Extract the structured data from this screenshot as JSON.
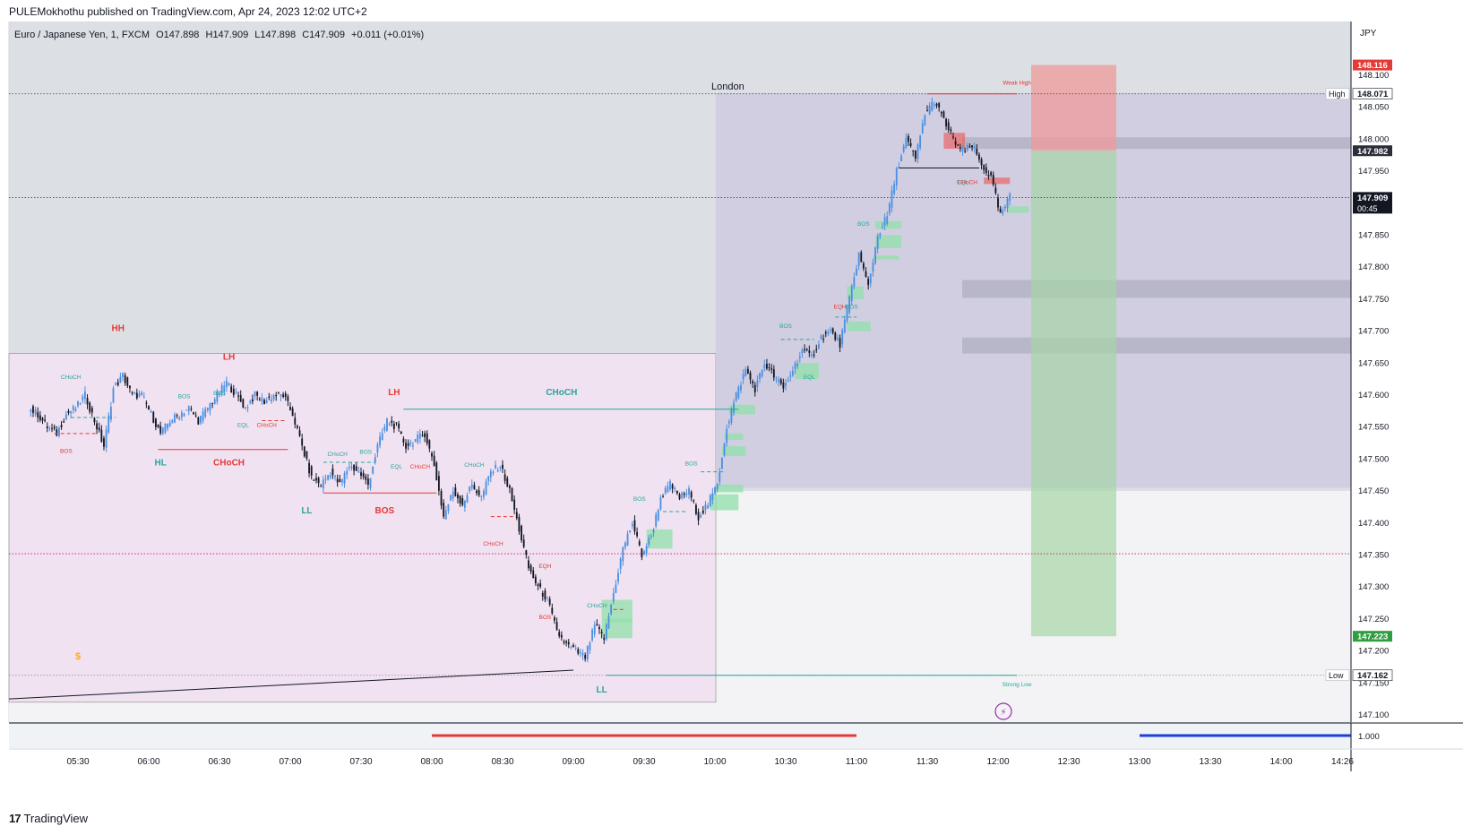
{
  "publisher_line": "PULEMokhothu published on TradingView.com, Apr 24, 2023 12:02 UTC+2",
  "legend": {
    "symbol": "Euro / Japanese Yen, 1, FXCM",
    "open": "O147.898",
    "high": "H147.909",
    "low": "L147.898",
    "close": "C147.909",
    "change": "+0.011 (+0.01%)"
  },
  "currency": "JPY",
  "footer_brand": "TradingView",
  "session_label": "London",
  "pane_value": "1.000",
  "colors": {
    "bull": "#4a90e2",
    "bear": "#131722",
    "bos_green": "#26a69a",
    "choch_red": "#ef5350",
    "target_green": "#66bb6a",
    "stop_red": "#ef5350"
  },
  "chart_data": {
    "type": "candlestick",
    "timeframe": "1",
    "ylim": [
      147.11,
      148.16
    ],
    "x_ticks": [
      "05:30",
      "06:00",
      "06:30",
      "07:00",
      "07:30",
      "08:00",
      "08:30",
      "09:00",
      "09:30",
      "10:00",
      "10:30",
      "11:00",
      "11:30",
      "12:00",
      "12:30",
      "13:00",
      "13:30",
      "14:00",
      "14:26"
    ],
    "y_ticks": [
      "148.100",
      "148.050",
      "148.000",
      "147.950",
      "147.900",
      "147.850",
      "147.800",
      "147.750",
      "147.700",
      "147.650",
      "147.600",
      "147.550",
      "147.500",
      "147.450",
      "147.400",
      "147.350",
      "147.300",
      "147.250",
      "147.200",
      "147.150",
      "147.100"
    ],
    "price_badges": [
      {
        "price": 148.116,
        "label": "148.116",
        "color": "#e53935"
      },
      {
        "price": 148.071,
        "label": "148.071",
        "color": "#ffffff",
        "tag": "High"
      },
      {
        "price": 147.982,
        "label": "147.982",
        "color": "#2a2e39"
      },
      {
        "price": 147.909,
        "label": "147.909",
        "sub": "00:45",
        "color": "#131722"
      },
      {
        "price": 147.223,
        "label": "147.223",
        "color": "#2e9e3e"
      },
      {
        "price": 147.162,
        "label": "147.162",
        "color": "#ffffff",
        "tag": "Low"
      }
    ],
    "structure_labels": [
      {
        "text": "HH",
        "color": "red",
        "time": "05:47",
        "price": 147.7
      },
      {
        "text": "LH",
        "color": "red",
        "time": "06:34",
        "price": 147.655
      },
      {
        "text": "LH",
        "color": "red",
        "time": "07:44",
        "price": 147.6
      },
      {
        "text": "HL",
        "color": "green",
        "time": "06:05",
        "price": 147.49
      },
      {
        "text": "LL",
        "color": "green",
        "time": "07:07",
        "price": 147.415
      },
      {
        "text": "LL",
        "color": "green",
        "time": "09:12",
        "price": 147.135
      },
      {
        "text": "CHoCH",
        "color": "red",
        "time": "06:34",
        "price": 147.49
      },
      {
        "text": "BOS",
        "color": "red",
        "time": "07:40",
        "price": 147.415
      },
      {
        "text": "CHoCH",
        "color": "green",
        "time": "08:55",
        "price": 147.6
      },
      {
        "text": "CHoCH",
        "color": "green",
        "time": "05:27",
        "price": 147.625
      },
      {
        "text": "BOS",
        "color": "green",
        "time": "06:15",
        "price": 147.595
      },
      {
        "text": "BOS",
        "color": "green",
        "time": "06:30",
        "price": 147.6
      },
      {
        "text": "EQL",
        "color": "green",
        "time": "06:40",
        "price": 147.55
      },
      {
        "text": "CHoCH",
        "color": "red",
        "time": "06:50",
        "price": 147.55
      },
      {
        "text": "BOS",
        "color": "red",
        "time": "05:25",
        "price": 147.51
      },
      {
        "text": "CHoCH",
        "color": "green",
        "time": "07:20",
        "price": 147.505
      },
      {
        "text": "BOS",
        "color": "green",
        "time": "07:32",
        "price": 147.508
      },
      {
        "text": "EQL",
        "color": "green",
        "time": "07:45",
        "price": 147.485
      },
      {
        "text": "CHoCH",
        "color": "red",
        "time": "07:55",
        "price": 147.485
      },
      {
        "text": "CHoCH",
        "color": "green",
        "time": "08:18",
        "price": 147.488
      },
      {
        "text": "CHoCH",
        "color": "red",
        "time": "08:26",
        "price": 147.365
      },
      {
        "text": "EQH",
        "color": "red",
        "time": "08:48",
        "price": 147.33
      },
      {
        "text": "BOS",
        "color": "red",
        "time": "08:48",
        "price": 147.25
      },
      {
        "text": "CHoCH",
        "color": "green",
        "time": "09:10",
        "price": 147.268
      },
      {
        "text": "BOS",
        "color": "green",
        "time": "09:28",
        "price": 147.435
      },
      {
        "text": "BOS",
        "color": "green",
        "time": "09:50",
        "price": 147.49
      },
      {
        "text": "BOS",
        "color": "green",
        "time": "10:30",
        "price": 147.705
      },
      {
        "text": "EQL",
        "color": "green",
        "time": "10:40",
        "price": 147.625
      },
      {
        "text": "EQH",
        "color": "red",
        "time": "10:53",
        "price": 147.735
      },
      {
        "text": "BOS",
        "color": "green",
        "time": "10:58",
        "price": 147.735
      },
      {
        "text": "BOS",
        "color": "green",
        "time": "11:03",
        "price": 147.865
      },
      {
        "text": "EQL",
        "color": "green",
        "time": "11:45",
        "price": 147.93
      },
      {
        "text": "CHoCH",
        "color": "red",
        "time": "11:47",
        "price": 147.93
      },
      {
        "text": "Weak High",
        "color": "red",
        "time": "12:08",
        "price": 148.085
      },
      {
        "text": "Strong Low",
        "color": "green",
        "time": "12:08",
        "price": 147.145
      }
    ],
    "position": {
      "entry": 147.982,
      "stop": 148.116,
      "target": 147.223,
      "from": "12:13",
      "to": "12:49"
    },
    "series": [
      {
        "name": "EUR/JPY 1m",
        "ohlc": [
          [
            "05:10",
            147.58,
            147.62,
            147.55,
            147.57
          ],
          [
            "05:14",
            147.57,
            147.58,
            147.53,
            147.55
          ],
          [
            "05:18",
            147.55,
            147.56,
            147.52,
            147.54
          ],
          [
            "05:22",
            147.54,
            147.58,
            147.53,
            147.57
          ],
          [
            "05:26",
            147.57,
            147.6,
            147.55,
            147.58
          ],
          [
            "05:30",
            147.58,
            147.62,
            147.56,
            147.6
          ],
          [
            "05:34",
            147.6,
            147.61,
            147.55,
            147.56
          ],
          [
            "05:38",
            147.56,
            147.57,
            147.51,
            147.52
          ],
          [
            "05:42",
            147.52,
            147.62,
            147.51,
            147.61
          ],
          [
            "05:46",
            147.61,
            147.67,
            147.6,
            147.63
          ],
          [
            "05:50",
            147.63,
            147.64,
            147.59,
            147.6
          ],
          [
            "05:54",
            147.6,
            147.62,
            147.58,
            147.6
          ],
          [
            "05:58",
            147.6,
            147.61,
            147.56,
            147.57
          ],
          [
            "06:02",
            147.57,
            147.58,
            147.53,
            147.54
          ],
          [
            "06:06",
            147.54,
            147.57,
            147.52,
            147.56
          ],
          [
            "06:10",
            147.56,
            147.59,
            147.54,
            147.57
          ],
          [
            "06:14",
            147.57,
            147.6,
            147.55,
            147.58
          ],
          [
            "06:18",
            147.58,
            147.59,
            147.55,
            147.56
          ],
          [
            "06:22",
            147.56,
            147.59,
            147.55,
            147.58
          ],
          [
            "06:26",
            147.58,
            147.61,
            147.56,
            147.6
          ],
          [
            "06:30",
            147.6,
            147.64,
            147.59,
            147.62
          ],
          [
            "06:34",
            147.62,
            147.63,
            147.59,
            147.6
          ],
          [
            "06:38",
            147.6,
            147.61,
            147.57,
            147.58
          ],
          [
            "06:42",
            147.58,
            147.61,
            147.56,
            147.6
          ],
          [
            "06:46",
            147.6,
            147.61,
            147.57,
            147.59
          ],
          [
            "06:50",
            147.59,
            147.61,
            147.57,
            147.6
          ],
          [
            "06:54",
            147.6,
            147.62,
            147.58,
            147.6
          ],
          [
            "06:58",
            147.6,
            147.61,
            147.56,
            147.57
          ],
          [
            "07:02",
            147.57,
            147.58,
            147.51,
            147.52
          ],
          [
            "07:06",
            147.52,
            147.53,
            147.46,
            147.47
          ],
          [
            "07:10",
            147.47,
            147.48,
            147.44,
            147.46
          ],
          [
            "07:14",
            147.46,
            147.5,
            147.45,
            147.48
          ],
          [
            "07:18",
            147.48,
            147.49,
            147.45,
            147.46
          ],
          [
            "07:22",
            147.46,
            147.5,
            147.45,
            147.49
          ],
          [
            "07:26",
            147.49,
            147.51,
            147.47,
            147.48
          ],
          [
            "07:30",
            147.48,
            147.5,
            147.44,
            147.46
          ],
          [
            "07:34",
            147.46,
            147.53,
            147.45,
            147.52
          ],
          [
            "07:38",
            147.52,
            147.57,
            147.51,
            147.56
          ],
          [
            "07:42",
            147.56,
            147.58,
            147.53,
            147.55
          ],
          [
            "07:46",
            147.55,
            147.56,
            147.51,
            147.52
          ],
          [
            "07:50",
            147.52,
            147.55,
            147.5,
            147.53
          ],
          [
            "07:54",
            147.53,
            147.56,
            147.51,
            147.54
          ],
          [
            "07:58",
            147.54,
            147.55,
            147.48,
            147.49
          ],
          [
            "08:02",
            147.49,
            147.5,
            147.39,
            147.41
          ],
          [
            "08:06",
            147.41,
            147.46,
            147.4,
            147.45
          ],
          [
            "08:10",
            147.45,
            147.46,
            147.41,
            147.43
          ],
          [
            "08:14",
            147.43,
            147.47,
            147.42,
            147.46
          ],
          [
            "08:18",
            147.46,
            147.47,
            147.42,
            147.44
          ],
          [
            "08:22",
            147.44,
            147.49,
            147.43,
            147.48
          ],
          [
            "08:26",
            147.48,
            147.5,
            147.46,
            147.49
          ],
          [
            "08:30",
            147.49,
            147.5,
            147.44,
            147.45
          ],
          [
            "08:34",
            147.45,
            147.46,
            147.38,
            147.39
          ],
          [
            "08:38",
            147.39,
            147.4,
            147.32,
            147.33
          ],
          [
            "08:42",
            147.33,
            147.34,
            147.28,
            147.3
          ],
          [
            "08:46",
            147.3,
            147.31,
            147.27,
            147.28
          ],
          [
            "08:50",
            147.28,
            147.29,
            147.22,
            147.23
          ],
          [
            "08:54",
            147.23,
            147.25,
            147.19,
            147.21
          ],
          [
            "08:58",
            147.21,
            147.23,
            147.18,
            147.2
          ],
          [
            "09:02",
            147.2,
            147.22,
            147.17,
            147.19
          ],
          [
            "09:06",
            147.19,
            147.25,
            147.18,
            147.24
          ],
          [
            "09:10",
            147.24,
            147.27,
            147.21,
            147.22
          ],
          [
            "09:14",
            147.22,
            147.3,
            147.21,
            147.29
          ],
          [
            "09:18",
            147.29,
            147.38,
            147.28,
            147.36
          ],
          [
            "09:22",
            147.36,
            147.42,
            147.34,
            147.4
          ],
          [
            "09:26",
            147.4,
            147.41,
            147.33,
            147.35
          ],
          [
            "09:30",
            147.35,
            147.4,
            147.3,
            147.38
          ],
          [
            "09:34",
            147.38,
            147.45,
            147.37,
            147.44
          ],
          [
            "09:38",
            147.44,
            147.48,
            147.42,
            147.46
          ],
          [
            "09:42",
            147.46,
            147.47,
            147.42,
            147.44
          ],
          [
            "09:46",
            147.44,
            147.47,
            147.42,
            147.45
          ],
          [
            "09:50",
            147.45,
            147.46,
            147.4,
            147.41
          ],
          [
            "09:54",
            147.41,
            147.44,
            147.38,
            147.43
          ],
          [
            "09:58",
            147.43,
            147.47,
            147.41,
            147.46
          ],
          [
            "10:02",
            147.46,
            147.56,
            147.45,
            147.55
          ],
          [
            "10:06",
            147.55,
            147.62,
            147.53,
            147.6
          ],
          [
            "10:10",
            147.6,
            147.66,
            147.58,
            147.64
          ],
          [
            "10:14",
            147.64,
            147.65,
            147.59,
            147.61
          ],
          [
            "10:18",
            147.61,
            147.66,
            147.6,
            147.65
          ],
          [
            "10:22",
            147.65,
            147.69,
            147.62,
            147.63
          ],
          [
            "10:26",
            147.63,
            147.64,
            147.59,
            147.61
          ],
          [
            "10:30",
            147.61,
            147.65,
            147.6,
            147.64
          ],
          [
            "10:34",
            147.64,
            147.68,
            147.62,
            147.67
          ],
          [
            "10:38",
            147.67,
            147.71,
            147.64,
            147.66
          ],
          [
            "10:42",
            147.66,
            147.7,
            147.65,
            147.69
          ],
          [
            "10:46",
            147.69,
            147.72,
            147.67,
            147.7
          ],
          [
            "10:50",
            147.7,
            147.72,
            147.67,
            147.68
          ],
          [
            "10:54",
            147.68,
            147.76,
            147.67,
            147.75
          ],
          [
            "10:58",
            147.75,
            147.84,
            147.74,
            147.82
          ],
          [
            "11:02",
            147.82,
            147.83,
            147.75,
            147.77
          ],
          [
            "11:06",
            147.77,
            147.86,
            147.76,
            147.85
          ],
          [
            "11:10",
            147.85,
            147.9,
            147.83,
            147.88
          ],
          [
            "11:14",
            147.88,
            147.96,
            147.87,
            147.95
          ],
          [
            "11:18",
            147.95,
            148.02,
            147.94,
            148.0
          ],
          [
            "11:22",
            148.0,
            148.01,
            147.96,
            147.97
          ],
          [
            "11:26",
            147.97,
            148.05,
            147.96,
            148.04
          ],
          [
            "11:30",
            148.04,
            148.07,
            148.02,
            148.06
          ],
          [
            "11:34",
            148.06,
            148.06,
            148.02,
            148.03
          ],
          [
            "11:38",
            148.03,
            148.04,
            147.98,
            148.0
          ],
          [
            "11:42",
            148.0,
            148.01,
            147.96,
            147.98
          ],
          [
            "11:46",
            147.98,
            148.0,
            147.96,
            147.99
          ],
          [
            "11:50",
            147.99,
            148.0,
            147.95,
            147.96
          ],
          [
            "11:54",
            147.96,
            147.97,
            147.93,
            147.94
          ],
          [
            "11:58",
            147.94,
            147.95,
            147.85,
            147.88
          ],
          [
            "12:02",
            147.88,
            147.92,
            147.87,
            147.91
          ]
        ]
      }
    ]
  }
}
